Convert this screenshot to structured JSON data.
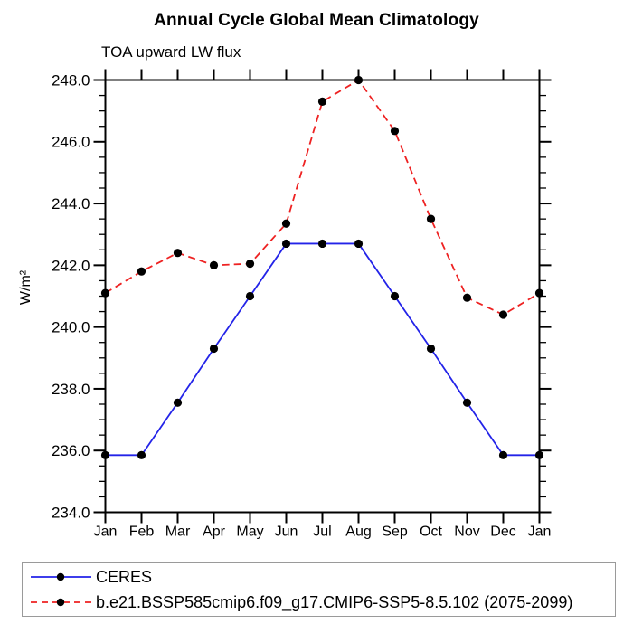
{
  "chart_data": {
    "type": "line",
    "title": "Annual Cycle Global Mean Climatology",
    "subtitle": "TOA upward LW flux",
    "ylabel": "W/m²",
    "xlabel": "",
    "categories": [
      "Jan",
      "Feb",
      "Mar",
      "Apr",
      "May",
      "Jun",
      "Jul",
      "Aug",
      "Sep",
      "Oct",
      "Nov",
      "Dec",
      "Jan"
    ],
    "ylim": [
      234.0,
      248.0
    ],
    "ytick_major_interval": 2.0,
    "ytick_minor_interval": 0.5,
    "ytick_labels": [
      "234.0",
      "236.0",
      "238.0",
      "240.0",
      "242.0",
      "244.0",
      "246.0",
      "248.0"
    ],
    "grid": false,
    "legend_position": "bottom",
    "frame_color": "#000000",
    "marker_color": "#000000",
    "series": [
      {
        "name": "CERES",
        "color": "#2323e8",
        "line_style": "solid",
        "marker": "circle",
        "values": [
          235.85,
          235.85,
          237.55,
          239.3,
          241.0,
          242.7,
          242.7,
          242.7,
          241.0,
          239.3,
          237.55,
          235.85,
          235.85
        ]
      },
      {
        "name": "b.e21.BSSP585cmip6.f09_g17.CMIP6-SSP5-8.5.102 (2075-2099)",
        "color": "#ee2222",
        "line_style": "dashed",
        "marker": "circle",
        "values": [
          241.1,
          241.8,
          242.4,
          242.0,
          242.05,
          243.35,
          247.3,
          248.0,
          246.35,
          243.5,
          240.95,
          240.4,
          241.1
        ]
      }
    ]
  }
}
